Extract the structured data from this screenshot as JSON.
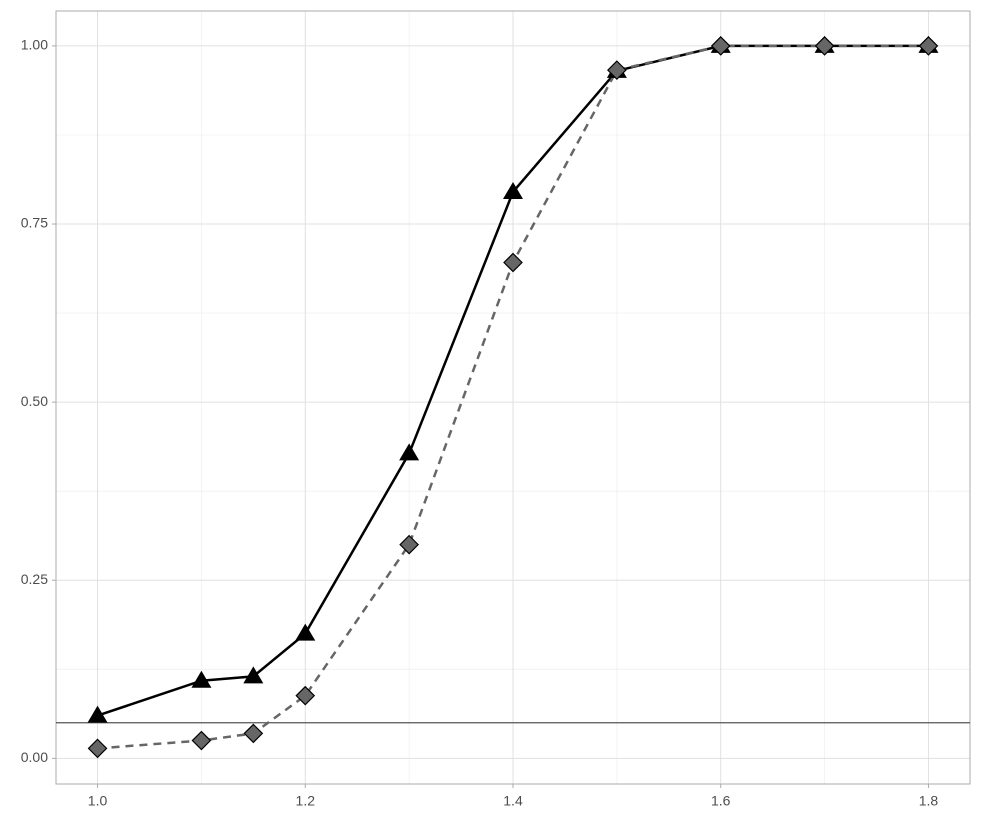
{
  "chart_data": {
    "type": "line",
    "x": [
      1.0,
      1.1,
      1.15,
      1.2,
      1.3,
      1.4,
      1.5,
      1.6,
      1.7,
      1.8
    ],
    "series": [
      {
        "color": "#000000",
        "line_style": "solid",
        "marker": "triangle",
        "values": [
          0.06,
          0.109,
          0.115,
          0.175,
          0.428,
          0.795,
          0.965,
          1.0,
          1.0,
          1.0
        ]
      },
      {
        "color": "#666666",
        "line_style": "dashed",
        "marker": "diamond",
        "values": [
          0.014,
          0.025,
          0.035,
          0.088,
          0.3,
          0.696,
          0.966,
          1.0,
          1.0,
          1.0
        ]
      }
    ],
    "xlim": [
      0.96,
      1.84
    ],
    "ylim": [
      -0.036,
      1.049
    ],
    "xticks": [
      {
        "value": 1.0,
        "label": "1.0"
      },
      1.2,
      1.4,
      1.6,
      1.8
    ],
    "yticks": [
      {
        "value": 0,
        "label": "0.00"
      },
      0.25,
      {
        "value": 0.5,
        "label": "0.50"
      },
      0.75,
      {
        "value": 1,
        "label": "1.00"
      }
    ],
    "x_minor_ticks": [
      1.1,
      1.3,
      1.5,
      1.7
    ],
    "y_minor_ticks": [
      0.125,
      0.375,
      0.625,
      0.875
    ],
    "hline": 0.05,
    "grid": true
  }
}
